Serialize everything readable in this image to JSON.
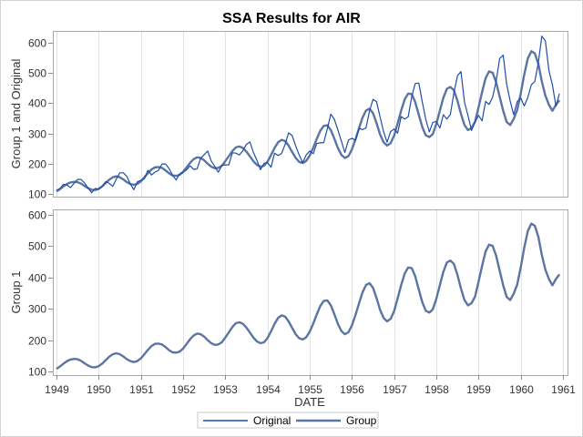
{
  "chart_data": {
    "type": "line",
    "title": "SSA Results for AIR",
    "xlabel": "DATE",
    "x_start": "1949-01",
    "x_frequency": "monthly",
    "xlim": [
      1949,
      1961
    ],
    "xticks": [
      "1949",
      "1950",
      "1951",
      "1952",
      "1953",
      "1954",
      "1955",
      "1956",
      "1957",
      "1958",
      "1959",
      "1960",
      "1961"
    ],
    "grid": "vertical",
    "legend_position": "bottom",
    "panels": [
      {
        "ylabel": "Group 1 and Original",
        "ylim": [
          100,
          600
        ],
        "yticks": [
          "100",
          "200",
          "300",
          "400",
          "500",
          "600"
        ],
        "series_shown": [
          "Original",
          "Group"
        ]
      },
      {
        "ylabel": "Group 1",
        "ylim": [
          100,
          600
        ],
        "yticks": [
          "100",
          "200",
          "300",
          "400",
          "500",
          "600"
        ],
        "series_shown": [
          "Group"
        ]
      }
    ],
    "series": [
      {
        "name": "Original",
        "color": "#1f4ea8",
        "values": [
          112,
          118,
          132,
          129,
          121,
          135,
          148,
          148,
          136,
          119,
          104,
          118,
          115,
          126,
          141,
          135,
          125,
          149,
          170,
          170,
          158,
          133,
          114,
          140,
          145,
          150,
          178,
          163,
          172,
          178,
          199,
          199,
          184,
          162,
          146,
          166,
          171,
          180,
          193,
          181,
          183,
          218,
          230,
          242,
          209,
          191,
          172,
          194,
          196,
          196,
          236,
          235,
          229,
          243,
          264,
          272,
          237,
          211,
          180,
          201,
          204,
          188,
          235,
          227,
          234,
          264,
          302,
          293,
          259,
          229,
          203,
          229,
          242,
          233,
          267,
          269,
          270,
          315,
          364,
          347,
          312,
          274,
          237,
          278,
          284,
          277,
          317,
          313,
          318,
          374,
          413,
          405,
          355,
          306,
          271,
          306,
          315,
          301,
          356,
          348,
          355,
          422,
          465,
          467,
          404,
          347,
          305,
          336,
          340,
          318,
          362,
          348,
          363,
          435,
          491,
          505,
          404,
          359,
          310,
          337,
          360,
          342,
          406,
          396,
          420,
          472,
          548,
          559,
          463,
          407,
          362,
          405,
          417,
          391,
          419,
          461,
          472,
          535,
          622,
          606,
          508,
          461,
          390,
          432
        ]
      },
      {
        "name": "Group",
        "color": "#5a74a3",
        "values": [
          108,
          116,
          125,
          133,
          138,
          140,
          139,
          134,
          126,
          119,
          114,
          113,
          117,
          125,
          136,
          147,
          155,
          158,
          155,
          148,
          139,
          133,
          130,
          133,
          142,
          155,
          169,
          181,
          188,
          189,
          186,
          178,
          168,
          161,
          160,
          163,
          173,
          188,
          203,
          215,
          221,
          219,
          211,
          200,
          190,
          185,
          186,
          193,
          208,
          225,
          242,
          254,
          257,
          252,
          240,
          224,
          208,
          196,
          190,
          193,
          207,
          228,
          252,
          271,
          279,
          275,
          260,
          239,
          219,
          206,
          202,
          209,
          227,
          253,
          282,
          309,
          325,
          327,
          311,
          283,
          252,
          229,
          219,
          225,
          247,
          280,
          317,
          352,
          376,
          382,
          367,
          334,
          297,
          271,
          260,
          268,
          293,
          333,
          376,
          413,
          432,
          430,
          404,
          362,
          321,
          294,
          288,
          298,
          332,
          376,
          418,
          448,
          454,
          443,
          408,
          365,
          328,
          311,
          318,
          339,
          386,
          437,
          483,
          505,
          501,
          470,
          422,
          375,
          338,
          328,
          348,
          378,
          433,
          495,
          548,
          572,
          565,
          530,
          472,
          425,
          395,
          375,
          395,
          410
        ]
      }
    ]
  },
  "legend": {
    "items": [
      {
        "label": "Original",
        "color": "#1f4ea8"
      },
      {
        "label": "Group",
        "color": "#5a74a3"
      }
    ]
  }
}
